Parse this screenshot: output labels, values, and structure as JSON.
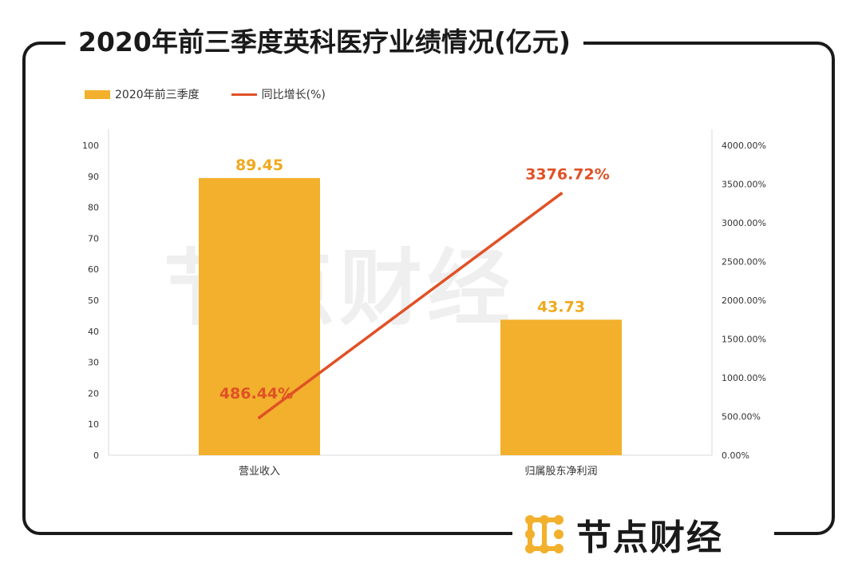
{
  "title": "2020年前三季度英科医疗业绩情况(亿元)",
  "legend": {
    "bar_label": "2020年前三季度",
    "line_label": "同比增长(%)"
  },
  "brand": {
    "name": "节点财经",
    "watermark": "节点财经",
    "logo_icon": "node-dots-logo-icon"
  },
  "colors": {
    "bar": "#f2b02c",
    "bar_label": "#f0a91f",
    "line": "#e05126",
    "frame": "#1a1a1a"
  },
  "chart_data": {
    "type": "bar",
    "categories": [
      "营业收入",
      "归属股东净利润"
    ],
    "series": [
      {
        "name": "2020年前三季度",
        "type": "bar",
        "axis": "left",
        "values": [
          89.45,
          43.73
        ],
        "labels": [
          "89.45",
          "43.73"
        ]
      },
      {
        "name": "同比增长(%)",
        "type": "line",
        "axis": "right",
        "values": [
          486.44,
          3376.72
        ],
        "labels": [
          "486.44%",
          "3376.72%"
        ]
      }
    ],
    "ylim": [
      0,
      100
    ],
    "yticks": [
      "0",
      "10",
      "20",
      "30",
      "40",
      "50",
      "60",
      "70",
      "80",
      "90",
      "100"
    ],
    "y2lim": [
      0,
      4000
    ],
    "y2ticks": [
      "0.00%",
      "500.00%",
      "1000.00%",
      "1500.00%",
      "2000.00%",
      "2500.00%",
      "3000.00%",
      "3500.00%",
      "4000.00%"
    ],
    "grid": false,
    "legend_position": "top-left"
  }
}
